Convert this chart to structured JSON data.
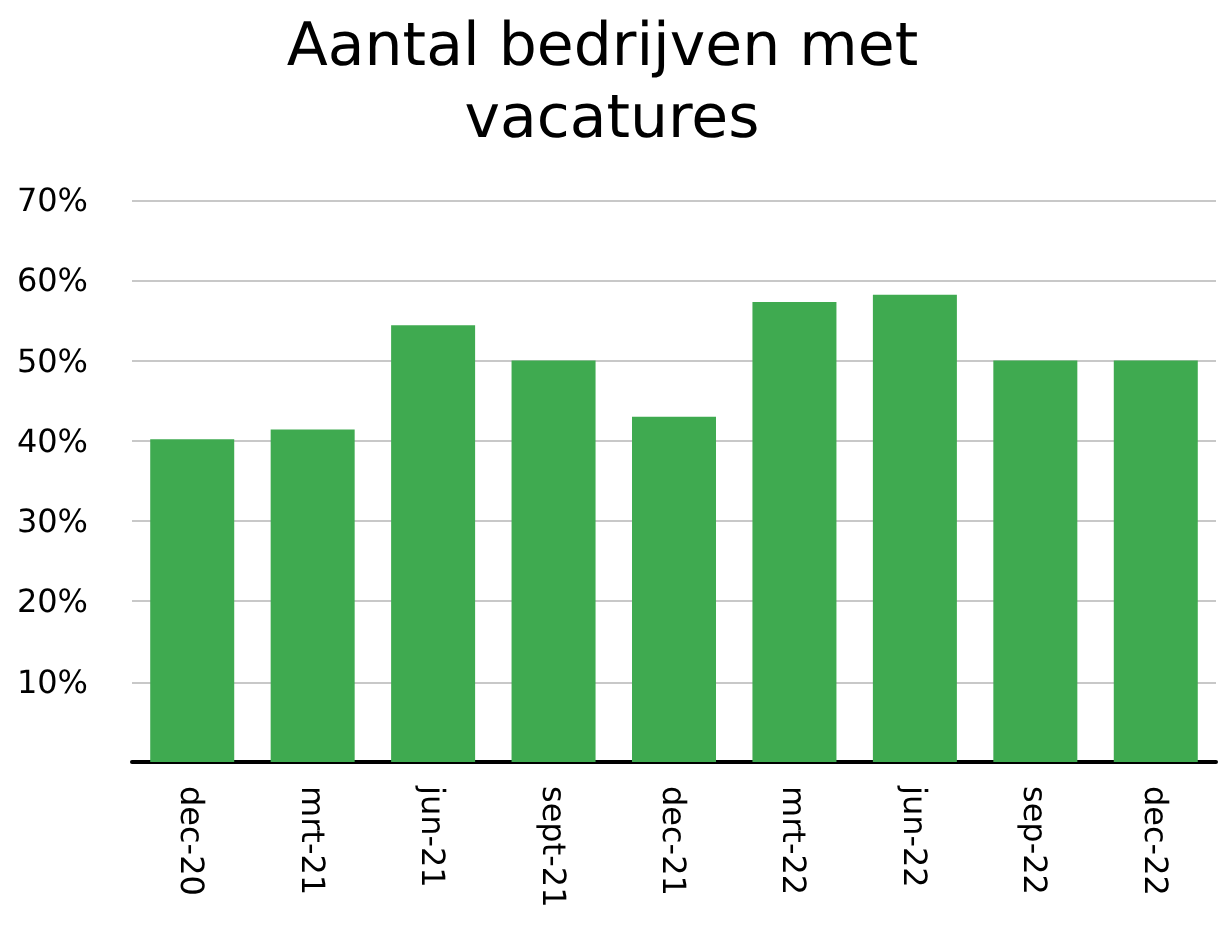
{
  "chart_data": {
    "type": "bar",
    "title": "Aantal bedrijven met vacatures",
    "categories": [
      "dec-20",
      "mrt-21",
      "jun-21",
      "sept-21",
      "dec-21",
      "mrt-22",
      "jun-22",
      "sep-22",
      "dec-22"
    ],
    "values": [
      40.2,
      41.4,
      54.4,
      50,
      43,
      57.3,
      58.2,
      50,
      50
    ],
    "color": "#3faa50",
    "ylim": [
      0,
      70
    ],
    "yticks": [
      {
        "value": 10,
        "label": "10%"
      },
      {
        "value": 20,
        "label": "20%"
      },
      {
        "value": 30,
        "label": "30%"
      },
      {
        "value": 40,
        "label": "40%"
      },
      {
        "value": 50,
        "label": "50%"
      },
      {
        "value": 60,
        "label": "60%"
      },
      {
        "value": 70,
        "label": "70%"
      }
    ],
    "grid": true
  }
}
